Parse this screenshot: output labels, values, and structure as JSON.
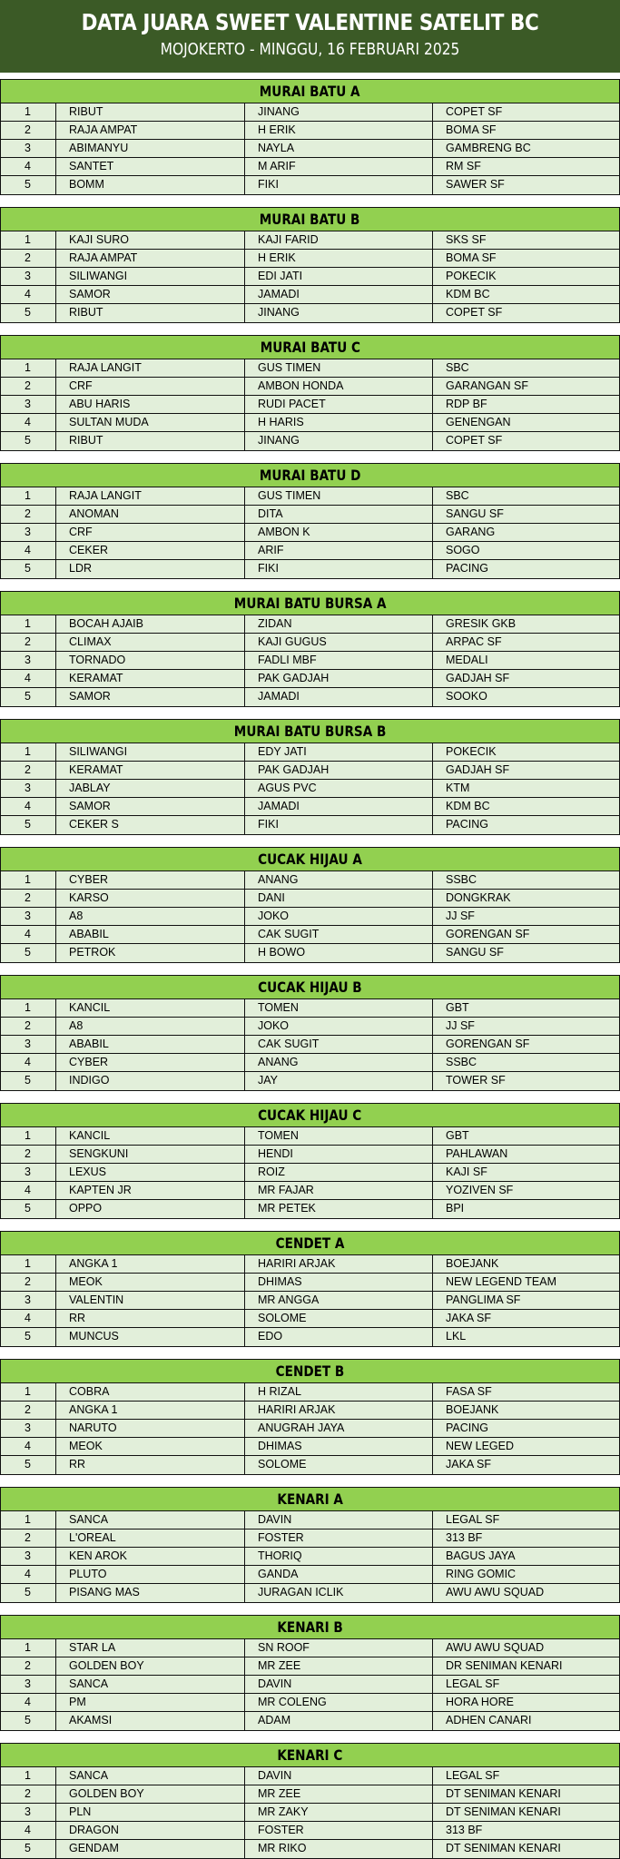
{
  "header": {
    "title": "DATA JUARA SWEET VALENTINE SATELIT BC",
    "subtitle": "MOJOKERTO - MINGGU, 16 FEBRUARI 2025"
  },
  "colors": {
    "header_bg": "#3b5a26",
    "section_title_bg": "#92d050",
    "row_bg": "#e2efda"
  },
  "sections": [
    {
      "title": "MURAI BATU A",
      "rows": [
        [
          "1",
          "RIBUT",
          "JINANG",
          "COPET SF"
        ],
        [
          "2",
          "RAJA AMPAT",
          "H ERIK",
          "BOMA SF"
        ],
        [
          "3",
          "ABIMANYU",
          "NAYLA",
          "GAMBRENG BC"
        ],
        [
          "4",
          "SANTET",
          "M ARIF",
          "RM SF"
        ],
        [
          "5",
          "BOMM",
          "FIKI",
          "SAWER SF"
        ]
      ]
    },
    {
      "title": "MURAI BATU B",
      "rows": [
        [
          "1",
          "KAJI SURO",
          "KAJI FARID",
          "SKS SF"
        ],
        [
          "2",
          "RAJA AMPAT",
          "H ERIK",
          "BOMA SF"
        ],
        [
          "3",
          "SILIWANGI",
          "EDI JATI",
          "POKECIK"
        ],
        [
          "4",
          "SAMOR",
          "JAMADI",
          "KDM BC"
        ],
        [
          "5",
          "RIBUT",
          "JINANG",
          "COPET SF"
        ]
      ]
    },
    {
      "title": "MURAI BATU C",
      "rows": [
        [
          "1",
          "RAJA LANGIT",
          "GUS TIMEN",
          "SBC"
        ],
        [
          "2",
          "CRF",
          "AMBON HONDA",
          "GARANGAN SF"
        ],
        [
          "3",
          "ABU HARIS",
          "RUDI PACET",
          "RDP BF"
        ],
        [
          "4",
          "SULTAN MUDA",
          "H HARIS",
          "GENENGAN"
        ],
        [
          "5",
          "RIBUT",
          "JINANG",
          "COPET SF"
        ]
      ]
    },
    {
      "title": "MURAI BATU D",
      "rows": [
        [
          "1",
          "RAJA LANGIT",
          "GUS TIMEN",
          "SBC"
        ],
        [
          "2",
          "ANOMAN",
          "DITA",
          "SANGU SF"
        ],
        [
          "3",
          "CRF",
          "AMBON K",
          "GARANG"
        ],
        [
          "4",
          "CEKER",
          "ARIF",
          "SOGO"
        ],
        [
          "5",
          "LDR",
          "FIKI",
          "PACING"
        ]
      ]
    },
    {
      "title": "MURAI BATU BURSA A",
      "rows": [
        [
          "1",
          "BOCAH AJAIB",
          "ZIDAN",
          "GRESIK GKB"
        ],
        [
          "2",
          "CLIMAX",
          "KAJI GUGUS",
          "ARPAC SF"
        ],
        [
          "3",
          "TORNADO",
          "FADLI MBF",
          "MEDALI"
        ],
        [
          "4",
          "KERAMAT",
          "PAK GADJAH",
          "GADJAH SF"
        ],
        [
          "5",
          "SAMOR",
          "JAMADI",
          "SOOKO"
        ]
      ]
    },
    {
      "title": "MURAI BATU BURSA B",
      "rows": [
        [
          "1",
          "SILIWANGI",
          "EDY JATI",
          "POKECIK"
        ],
        [
          "2",
          "KERAMAT",
          "PAK GADJAH",
          "GADJAH SF"
        ],
        [
          "3",
          "JABLAY",
          "AGUS PVC",
          "KTM"
        ],
        [
          "4",
          "SAMOR",
          "JAMADI",
          "KDM BC"
        ],
        [
          "5",
          "CEKER S",
          "FIKI",
          "PACING"
        ]
      ]
    },
    {
      "title": "CUCAK HIJAU A",
      "rows": [
        [
          "1",
          "CYBER",
          "ANANG",
          "SSBC"
        ],
        [
          "2",
          "KARSO",
          "DANI",
          "DONGKRAK"
        ],
        [
          "3",
          "A8",
          "JOKO",
          "JJ SF"
        ],
        [
          "4",
          "ABABIL",
          "CAK SUGIT",
          "GORENGAN SF"
        ],
        [
          "5",
          "PETROK",
          "H BOWO",
          "SANGU SF"
        ]
      ]
    },
    {
      "title": "CUCAK HIJAU B",
      "rows": [
        [
          "1",
          "KANCIL",
          "TOMEN",
          "GBT"
        ],
        [
          "2",
          "A8",
          "JOKO",
          "JJ SF"
        ],
        [
          "3",
          "ABABIL",
          "CAK SUGIT",
          "GORENGAN SF"
        ],
        [
          "4",
          "CYBER",
          "ANANG",
          "SSBC"
        ],
        [
          "5",
          "INDIGO",
          "JAY",
          "TOWER SF"
        ]
      ]
    },
    {
      "title": "CUCAK HIJAU C",
      "rows": [
        [
          "1",
          "KANCIL",
          "TOMEN",
          "GBT"
        ],
        [
          "2",
          "SENGKUNI",
          "HENDI",
          "PAHLAWAN"
        ],
        [
          "3",
          "LEXUS",
          "ROIZ",
          "KAJI SF"
        ],
        [
          "4",
          "KAPTEN JR",
          "MR FAJAR",
          "YOZIVEN SF"
        ],
        [
          "5",
          "OPPO",
          "MR PETEK",
          "BPI"
        ]
      ]
    },
    {
      "title": "CENDET A",
      "rows": [
        [
          "1",
          "ANGKA 1",
          "HARIRI ARJAK",
          "BOEJANK"
        ],
        [
          "2",
          "MEOK",
          "DHIMAS",
          "NEW LEGEND TEAM"
        ],
        [
          "3",
          "VALENTIN",
          "MR ANGGA",
          "PANGLIMA SF"
        ],
        [
          "4",
          "RR",
          "SOLOME",
          "JAKA SF"
        ],
        [
          "5",
          "MUNCUS",
          "EDO",
          "LKL"
        ]
      ]
    },
    {
      "title": "CENDET B",
      "rows": [
        [
          "1",
          "COBRA",
          "H RIZAL",
          "FASA SF"
        ],
        [
          "2",
          "ANGKA 1",
          "HARIRI ARJAK",
          "BOEJANK"
        ],
        [
          "3",
          "NARUTO",
          "ANUGRAH JAYA",
          "PACING"
        ],
        [
          "4",
          "MEOK",
          "DHIMAS",
          "NEW LEGED"
        ],
        [
          "5",
          "RR",
          "SOLOME",
          "JAKA SF"
        ]
      ]
    },
    {
      "title": "KENARI A",
      "rows": [
        [
          "1",
          "SANCA",
          "DAVIN",
          "LEGAL SF"
        ],
        [
          "2",
          "L'OREAL",
          "FOSTER",
          "313 BF"
        ],
        [
          "3",
          "KEN AROK",
          "THORIQ",
          "BAGUS JAYA"
        ],
        [
          "4",
          "PLUTO",
          "GANDA",
          "RING GOMIC"
        ],
        [
          "5",
          "PISANG MAS",
          "JURAGAN ICLIK",
          "AWU AWU SQUAD"
        ]
      ]
    },
    {
      "title": "KENARI B",
      "rows": [
        [
          "1",
          "STAR LA",
          "SN ROOF",
          "AWU AWU SQUAD"
        ],
        [
          "2",
          "GOLDEN BOY",
          "MR ZEE",
          "DR SENIMAN KENARI"
        ],
        [
          "3",
          "SANCA",
          "DAVIN",
          "LEGAL SF"
        ],
        [
          "4",
          "PM",
          "MR COLENG",
          "HORA HORE"
        ],
        [
          "5",
          "AKAMSI",
          "ADAM",
          "ADHEN CANARI"
        ]
      ]
    },
    {
      "title": "KENARI C",
      "rows": [
        [
          "1",
          "SANCA",
          "DAVIN",
          "LEGAL SF"
        ],
        [
          "2",
          "GOLDEN BOY",
          "MR ZEE",
          "DT SENIMAN KENARI"
        ],
        [
          "3",
          "PLN",
          "MR ZAKY",
          "DT SENIMAN KENARI"
        ],
        [
          "4",
          "DRAGON",
          "FOSTER",
          "313 BF"
        ],
        [
          "5",
          "GENDAM",
          "MR RIKO",
          "DT SENIMAN KENARI"
        ]
      ]
    }
  ]
}
